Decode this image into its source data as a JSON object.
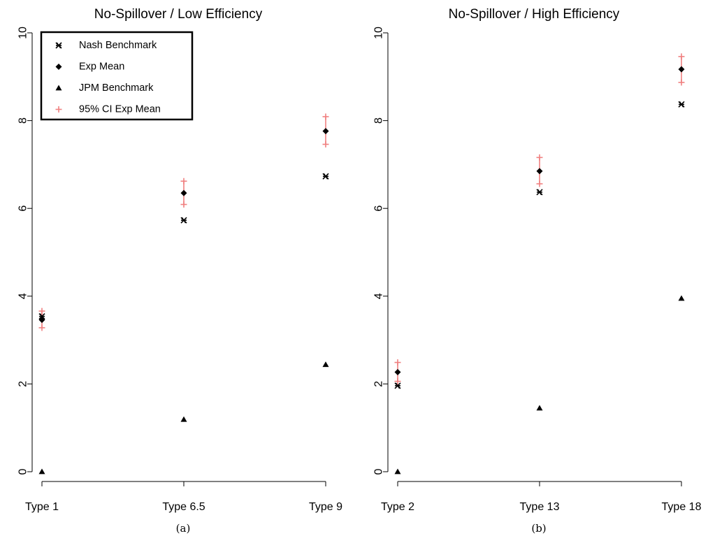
{
  "chart_data": [
    {
      "type": "scatter",
      "title": "No-Spillover / Low Efficiency",
      "caption": "(a)",
      "categories": [
        "Type 1",
        "Type 6.5",
        "Type 9"
      ],
      "ylim": [
        0,
        10
      ],
      "yticks": [
        0,
        2,
        4,
        6,
        8,
        10
      ],
      "grid": false,
      "legend_position": "top-left",
      "series": [
        {
          "name": "Nash Benchmark",
          "marker": "asterisk",
          "values": [
            3.54,
            5.73,
            6.73
          ]
        },
        {
          "name": "Exp Mean",
          "marker": "diamond",
          "values": [
            3.46,
            6.35,
            7.76
          ]
        },
        {
          "name": "JPM Benchmark",
          "marker": "triangle",
          "values": [
            0.0,
            1.19,
            2.44
          ]
        },
        {
          "name": "95% CI Exp Mean",
          "marker": "plus",
          "lower": [
            3.28,
            6.09,
            7.46
          ],
          "upper": [
            3.66,
            6.62,
            8.09
          ]
        }
      ]
    },
    {
      "type": "scatter",
      "title": "No-Spillover / High Efficiency",
      "caption": "(b)",
      "categories": [
        "Type 2",
        "Type 13",
        "Type 18"
      ],
      "ylim": [
        0,
        10
      ],
      "yticks": [
        0,
        2,
        4,
        6,
        8,
        10
      ],
      "grid": false,
      "series": [
        {
          "name": "Nash Benchmark",
          "marker": "asterisk",
          "values": [
            1.96,
            6.37,
            8.37
          ]
        },
        {
          "name": "Exp Mean",
          "marker": "diamond",
          "values": [
            2.27,
            6.85,
            9.17
          ]
        },
        {
          "name": "JPM Benchmark",
          "marker": "triangle",
          "values": [
            0.0,
            1.45,
            3.95
          ]
        },
        {
          "name": "95% CI Exp Mean",
          "marker": "plus",
          "lower": [
            2.06,
            6.56,
            8.87
          ],
          "upper": [
            2.49,
            7.16,
            9.46
          ]
        }
      ]
    }
  ],
  "colors": {
    "ci": "#f08080",
    "marker": "#000000"
  }
}
